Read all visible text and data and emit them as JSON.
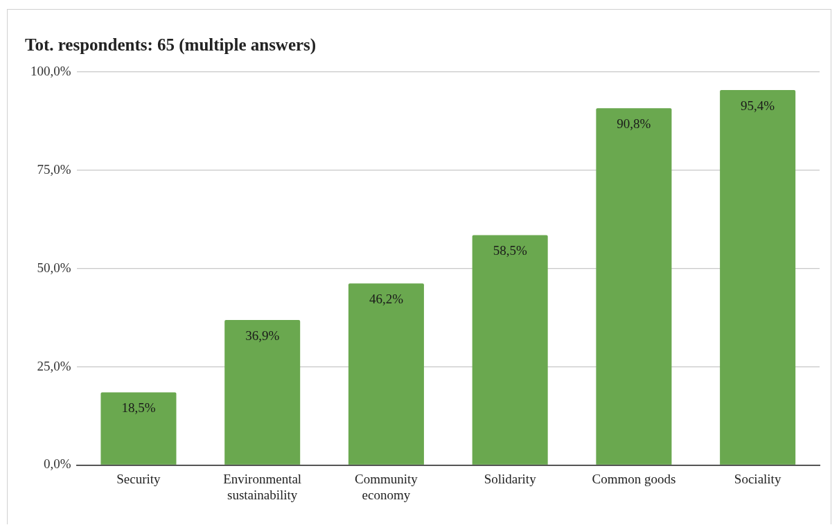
{
  "chart_data": {
    "type": "bar",
    "title": "Tot. respondents: 65 (multiple answers)",
    "categories": [
      "Security",
      "Environmental sustainability",
      "Community economy",
      "Solidarity",
      "Common goods",
      "Sociality"
    ],
    "values": [
      18.5,
      36.9,
      46.2,
      58.5,
      90.8,
      95.4
    ],
    "value_labels": [
      "18,5%",
      "36,9%",
      "46,2%",
      "58,5%",
      "90,8%",
      "95,4%"
    ],
    "color": "#6aa84f",
    "ylim": [
      0,
      100
    ],
    "yticks": [
      {
        "value": 0,
        "label": "0,0%"
      },
      {
        "value": 25,
        "label": "25,0%"
      },
      {
        "value": 50,
        "label": "50,0%"
      },
      {
        "value": 75,
        "label": "75,0%"
      },
      {
        "value": 100,
        "label": "100,0%"
      }
    ],
    "grid": "y",
    "legend": false
  }
}
